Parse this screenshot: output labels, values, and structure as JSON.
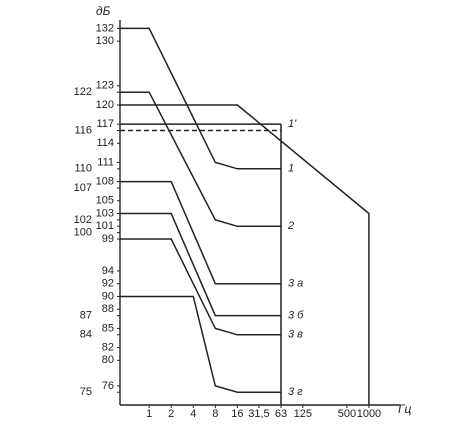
{
  "chart_data": {
    "type": "line",
    "y_label": "дБ",
    "x_label": "Гц",
    "log_x": true,
    "xlim": [
      0.4,
      2000
    ],
    "ylim": [
      73,
      133
    ],
    "xticks": [
      1,
      2,
      4,
      8,
      16,
      {
        "value": 31.5,
        "label": "31,5"
      },
      63,
      125,
      500,
      1000
    ],
    "yticks": [
      132,
      130,
      123,
      122,
      120,
      117,
      116,
      114,
      111,
      110,
      108,
      107,
      105,
      103,
      102,
      101,
      100,
      99,
      94,
      92,
      90,
      88,
      87,
      85,
      84,
      82,
      80,
      76,
      75
    ],
    "series": [
      {
        "name": "1",
        "color": "#222",
        "x": [
          0.4,
          1,
          8,
          16,
          63
        ],
        "values": [
          132,
          132,
          111,
          110,
          110
        ]
      },
      {
        "name": "2",
        "color": "#222",
        "x": [
          0.4,
          1,
          8,
          16,
          63
        ],
        "values": [
          122,
          122,
          102,
          101,
          101
        ]
      },
      {
        "name": "3 а",
        "color": "#222",
        "x": [
          0.4,
          2,
          8,
          16,
          63
        ],
        "values": [
          108,
          108,
          92,
          92,
          92
        ]
      },
      {
        "name": "3 б",
        "color": "#222",
        "x": [
          0.4,
          2,
          8,
          16,
          63
        ],
        "values": [
          103,
          103,
          87,
          87,
          87
        ]
      },
      {
        "name": "3 в",
        "color": "#222",
        "x": [
          0.4,
          2,
          8,
          16,
          63
        ],
        "values": [
          99,
          99,
          85,
          84,
          84
        ]
      },
      {
        "name": "3 г",
        "color": "#222",
        "x": [
          0.4,
          4,
          8,
          16,
          63
        ],
        "values": [
          90,
          90,
          76,
          75,
          75
        ]
      },
      {
        "name": "1'",
        "color": "#222",
        "x": [
          0.4,
          63
        ],
        "values": [
          117,
          117
        ]
      },
      {
        "color": "#222",
        "dashed": true,
        "x": [
          0.4,
          63
        ],
        "values": [
          116,
          116
        ]
      },
      {
        "color": "#222",
        "x": [
          0.4,
          16,
          1000,
          1000
        ],
        "values": [
          120,
          120,
          103,
          73
        ]
      },
      {
        "color": "#222",
        "x": [
          63,
          63
        ],
        "values": [
          117,
          73
        ]
      }
    ]
  }
}
